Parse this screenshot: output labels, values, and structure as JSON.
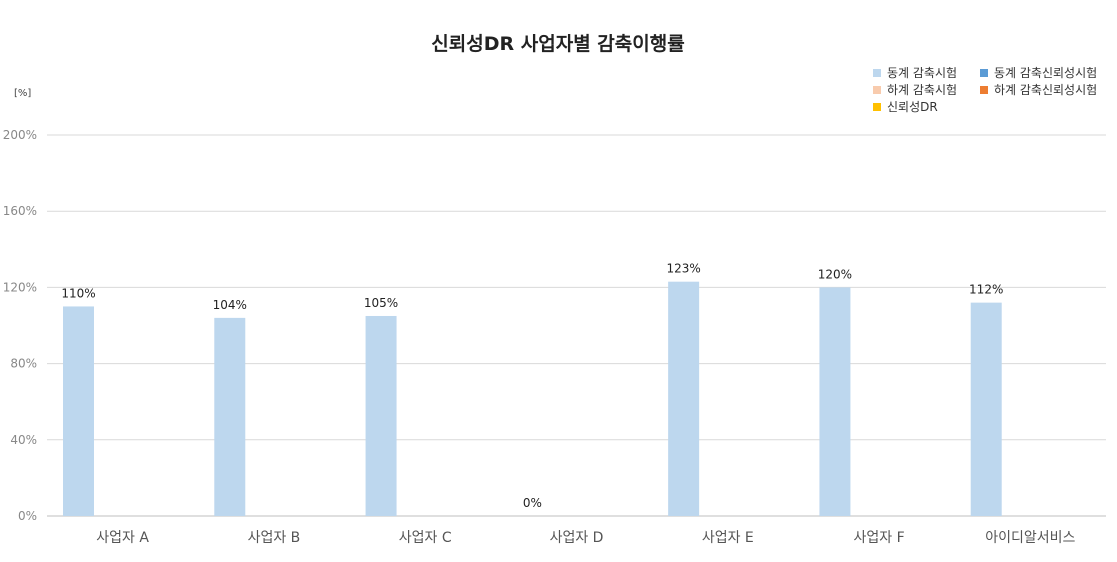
{
  "chart_data": {
    "type": "bar",
    "title": "신뢰성DR 사업자별 감축이행률",
    "unit_label": "[%]",
    "ylim": [
      0,
      200
    ],
    "yticks": [
      "0%",
      "40%",
      "80%",
      "120%",
      "160%",
      "200%"
    ],
    "ytick_values": [
      0,
      40,
      80,
      120,
      160,
      200
    ],
    "grid": true,
    "legend_position": "top-right",
    "categories": [
      "사업자 A",
      "사업자 B",
      "사업자 C",
      "사업자 D",
      "사업자 E",
      "사업자 F",
      "아이디알서비스"
    ],
    "series": [
      {
        "name": "동계 감축시험",
        "color": "#bdd7ee",
        "values": [
          110,
          104,
          105,
          0,
          123,
          120,
          112
        ],
        "labels": [
          "110%",
          "104%",
          "105%",
          "0%",
          "123%",
          "120%",
          "112%"
        ]
      }
    ],
    "legend": [
      {
        "name": "동계 감축시험",
        "color": "#bdd7ee"
      },
      {
        "name": "동계 감축신뢰성시험",
        "color": "#5b9bd5"
      },
      {
        "name": "하계 감축시험",
        "color": "#f8cbad"
      },
      {
        "name": "하계 감축신뢰성시험",
        "color": "#ed7d31"
      },
      {
        "name": "신뢰성DR",
        "color": "#ffc000"
      }
    ]
  }
}
